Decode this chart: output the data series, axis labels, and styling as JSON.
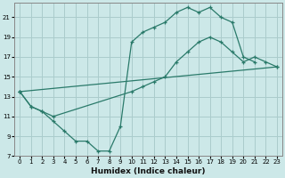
{
  "xlabel": "Humidex (Indice chaleur)",
  "bg_color": "#cce8e8",
  "grid_color": "#aacccc",
  "line_color": "#2a7a6a",
  "xlim": [
    -0.5,
    23.5
  ],
  "ylim": [
    7,
    22.5
  ],
  "xticks": [
    0,
    1,
    2,
    3,
    4,
    5,
    6,
    7,
    8,
    9,
    10,
    11,
    12,
    13,
    14,
    15,
    16,
    17,
    18,
    19,
    20,
    21,
    22,
    23
  ],
  "yticks": [
    7,
    9,
    11,
    13,
    15,
    17,
    19,
    21
  ],
  "line1_x": [
    0,
    1,
    2,
    3,
    4,
    5,
    6,
    7,
    8,
    9,
    10,
    11,
    12,
    13,
    14,
    15,
    16,
    17,
    18,
    19,
    20,
    21
  ],
  "line1_y": [
    13.5,
    12.0,
    11.5,
    10.5,
    9.5,
    8.5,
    8.5,
    7.5,
    7.5,
    10.0,
    18.5,
    19.5,
    20.0,
    20.5,
    21.5,
    22.0,
    21.5,
    22.0,
    21.0,
    20.5,
    17.0,
    16.5
  ],
  "line2_x": [
    0,
    1,
    2,
    3,
    10,
    11,
    12,
    13,
    14,
    15,
    16,
    17,
    18,
    19,
    20,
    21,
    22,
    23
  ],
  "line2_y": [
    13.5,
    12.0,
    11.5,
    11.0,
    13.5,
    14.0,
    14.5,
    15.0,
    16.5,
    17.5,
    18.5,
    19.0,
    18.5,
    17.5,
    16.5,
    17.0,
    16.5,
    16.0
  ],
  "line3_x": [
    0,
    23
  ],
  "line3_y": [
    13.5,
    16.0
  ]
}
